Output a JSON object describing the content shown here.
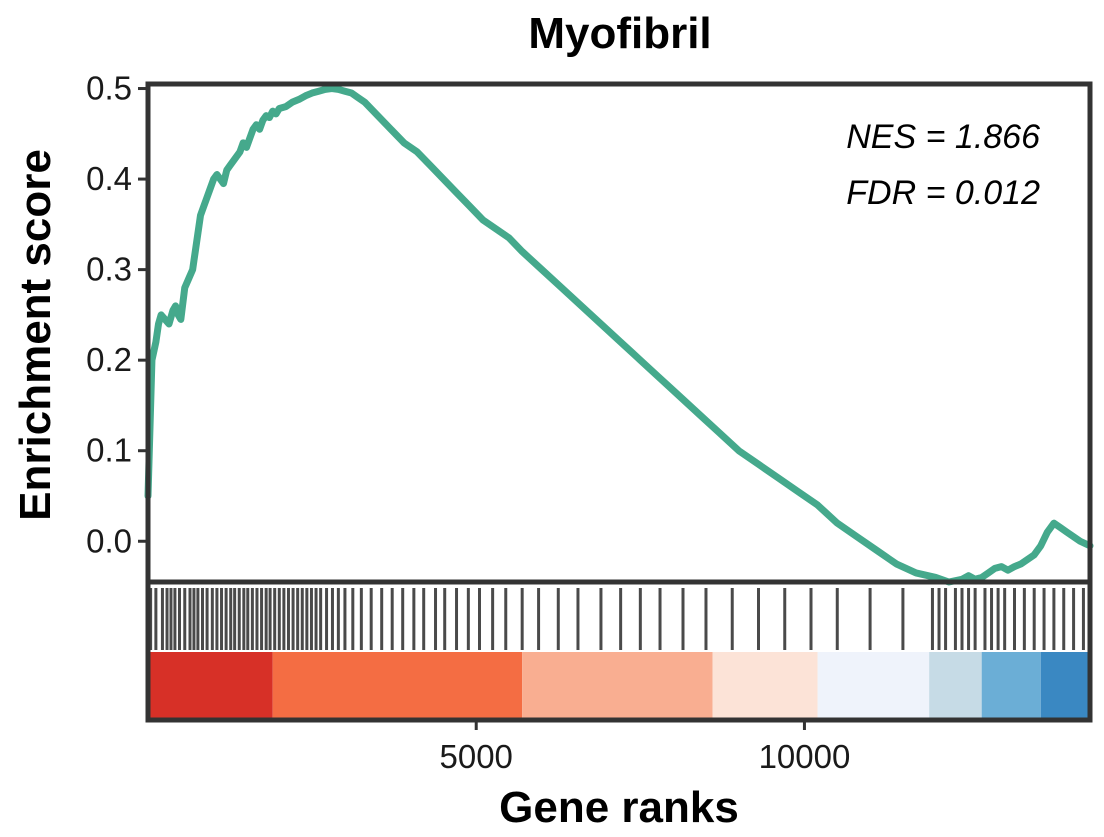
{
  "chart_data": {
    "type": "line",
    "title": "Myofibril",
    "xlabel": "Gene ranks",
    "ylabel": "Enrichment score",
    "xlim": [
      0,
      14350
    ],
    "ylim": [
      -0.045,
      0.505
    ],
    "y_ticks": [
      0.0,
      0.1,
      0.2,
      0.3,
      0.4,
      0.5
    ],
    "y_tick_labels": [
      "0.0",
      "0.1",
      "0.2",
      "0.3",
      "0.4",
      "0.5"
    ],
    "x_ticks": [
      5000,
      10000
    ],
    "x_tick_labels": [
      "5000",
      "10000"
    ],
    "grid": false,
    "line_color": "#45A98C",
    "annotations": [
      "NES = 1.866",
      "FDR = 0.012"
    ],
    "series": [
      {
        "x": [
          0,
          60,
          120,
          160,
          200,
          260,
          320,
          380,
          420,
          460,
          500,
          560,
          620,
          680,
          700,
          740,
          800,
          850,
          900,
          950,
          1000,
          1050,
          1100,
          1150,
          1200,
          1250,
          1300,
          1350,
          1400,
          1450,
          1500,
          1550,
          1600,
          1650,
          1700,
          1750,
          1800,
          1850,
          1900,
          1950,
          2000,
          2100,
          2200,
          2300,
          2400,
          2500,
          2600,
          2700,
          2800,
          2900,
          3000,
          3100,
          3200,
          3300,
          3500,
          3700,
          3900,
          4100,
          4300,
          4500,
          4700,
          4900,
          5100,
          5300,
          5500,
          5700,
          6000,
          6300,
          6600,
          6900,
          7200,
          7500,
          7800,
          8100,
          8400,
          8700,
          9000,
          9300,
          9600,
          9900,
          10200,
          10500,
          10800,
          11100,
          11400,
          11700,
          12000,
          12200,
          12400,
          12500,
          12600,
          12700,
          12800,
          12900,
          13000,
          13100,
          13200,
          13300,
          13400,
          13500,
          13600,
          13700,
          13800,
          13900,
          14000,
          14100,
          14200,
          14350
        ],
        "y": [
          0.05,
          0.2,
          0.22,
          0.24,
          0.25,
          0.245,
          0.24,
          0.255,
          0.26,
          0.25,
          0.245,
          0.28,
          0.29,
          0.3,
          0.31,
          0.33,
          0.36,
          0.37,
          0.38,
          0.39,
          0.4,
          0.405,
          0.4,
          0.395,
          0.41,
          0.415,
          0.42,
          0.425,
          0.43,
          0.44,
          0.435,
          0.445,
          0.455,
          0.46,
          0.455,
          0.465,
          0.47,
          0.468,
          0.475,
          0.472,
          0.478,
          0.48,
          0.485,
          0.488,
          0.492,
          0.495,
          0.497,
          0.499,
          0.5,
          0.499,
          0.497,
          0.495,
          0.49,
          0.485,
          0.47,
          0.455,
          0.44,
          0.43,
          0.415,
          0.4,
          0.385,
          0.37,
          0.355,
          0.345,
          0.335,
          0.32,
          0.3,
          0.28,
          0.26,
          0.24,
          0.22,
          0.2,
          0.18,
          0.16,
          0.14,
          0.12,
          0.1,
          0.085,
          0.07,
          0.055,
          0.04,
          0.02,
          0.005,
          -0.01,
          -0.025,
          -0.035,
          -0.04,
          -0.045,
          -0.042,
          -0.038,
          -0.042,
          -0.04,
          -0.035,
          -0.03,
          -0.028,
          -0.032,
          -0.028,
          -0.025,
          -0.02,
          -0.015,
          -0.005,
          0.01,
          0.02,
          0.015,
          0.01,
          0.005,
          0.0,
          -0.005
        ]
      }
    ],
    "hit_ranks": [
      40,
      120,
      220,
      290,
      350,
      410,
      480,
      560,
      640,
      700,
      760,
      830,
      900,
      980,
      1050,
      1120,
      1190,
      1260,
      1320,
      1390,
      1460,
      1520,
      1590,
      1660,
      1730,
      1800,
      1860,
      1930,
      2000,
      2070,
      2140,
      2210,
      2280,
      2350,
      2420,
      2490,
      2560,
      2630,
      2720,
      2810,
      2900,
      3000,
      3120,
      3250,
      3400,
      3560,
      3720,
      3880,
      4050,
      4200,
      4380,
      4520,
      4700,
      4880,
      5050,
      5250,
      5450,
      5700,
      5950,
      6250,
      6550,
      6900,
      7200,
      7500,
      7800,
      8150,
      8500,
      8900,
      9300,
      9700,
      10100,
      10500,
      11000,
      11500,
      11950,
      12050,
      12150,
      12300,
      12400,
      12500,
      12600,
      12750,
      12850,
      12950,
      13050,
      13200,
      13350,
      13500,
      13650,
      13800,
      13950,
      14100,
      14250
    ],
    "rank_colorbar": [
      {
        "from": 0,
        "to": 1900,
        "color": "#D73027"
      },
      {
        "from": 1900,
        "to": 5700,
        "color": "#F46D43"
      },
      {
        "from": 5700,
        "to": 8600,
        "color": "#F9AE91"
      },
      {
        "from": 8600,
        "to": 10200,
        "color": "#FCE3D7"
      },
      {
        "from": 10200,
        "to": 11900,
        "color": "#EFF3FB"
      },
      {
        "from": 11900,
        "to": 12700,
        "color": "#C6DBE6"
      },
      {
        "from": 12700,
        "to": 13600,
        "color": "#6BAED6"
      },
      {
        "from": 13600,
        "to": 14350,
        "color": "#3A88C2"
      }
    ]
  }
}
